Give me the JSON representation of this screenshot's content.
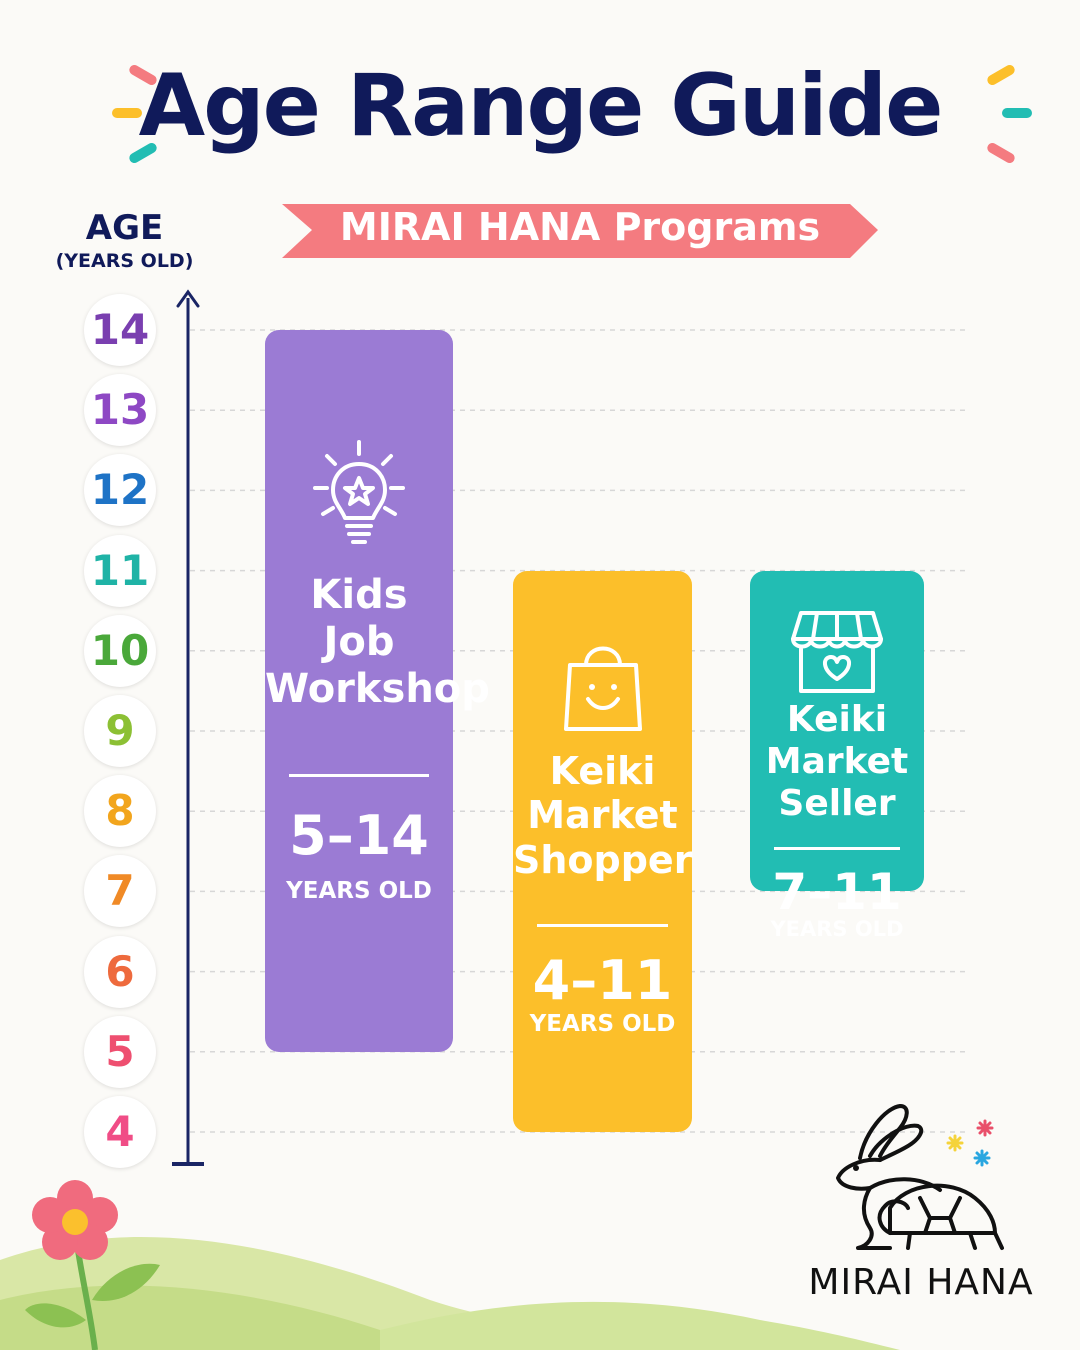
{
  "title": "Age Range Guide",
  "subtitle": "MIRAI HANA Programs",
  "colors": {
    "title": "#101a5a",
    "ribbon": "#f47b80",
    "purple": "#9b7bd4",
    "yellow": "#fcbf2a",
    "teal": "#22bdb3",
    "axis": "#1a2565"
  },
  "chart_data": {
    "type": "range-bar",
    "ylabel": "AGE",
    "ylabel_sub": "(YEARS OLD)",
    "ylim": [
      4,
      14
    ],
    "ticks": [
      14,
      13,
      12,
      11,
      10,
      9,
      8,
      7,
      6,
      5,
      4
    ],
    "tick_colors": [
      "#7a3fb0",
      "#8e48c4",
      "#1e73c6",
      "#1fb3a6",
      "#4aa83a",
      "#8cc034",
      "#f2a51d",
      "#f08a26",
      "#ee6a3d",
      "#ee4f70",
      "#f04d86"
    ],
    "grid": true,
    "series": [
      {
        "name": "Kids Job Workshop",
        "lines": [
          "Kids",
          "Job",
          "Workshop"
        ],
        "min": 5,
        "max": 14,
        "range_label": "5–14",
        "unit_label": "YEARS OLD",
        "color": "#9b7bd4",
        "icon": "lightbulb-star-icon"
      },
      {
        "name": "Keiki Market Shopper",
        "lines": [
          "Keiki",
          "Market",
          "Shopper"
        ],
        "min": 4,
        "max": 11,
        "range_label": "4–11",
        "unit_label": "YEARS OLD",
        "color": "#fcbf2a",
        "icon": "shopping-bag-smile-icon"
      },
      {
        "name": "Keiki Market Seller",
        "lines": [
          "Keiki",
          "Market",
          "Seller"
        ],
        "min": 7,
        "max": 11,
        "range_label": "7–11",
        "unit_label": "YEARS OLD",
        "color": "#22bdb3",
        "icon": "shop-heart-icon"
      }
    ]
  },
  "brand": {
    "name": "MIRAI HANA",
    "logo": "rabbit-turtle-logo"
  }
}
